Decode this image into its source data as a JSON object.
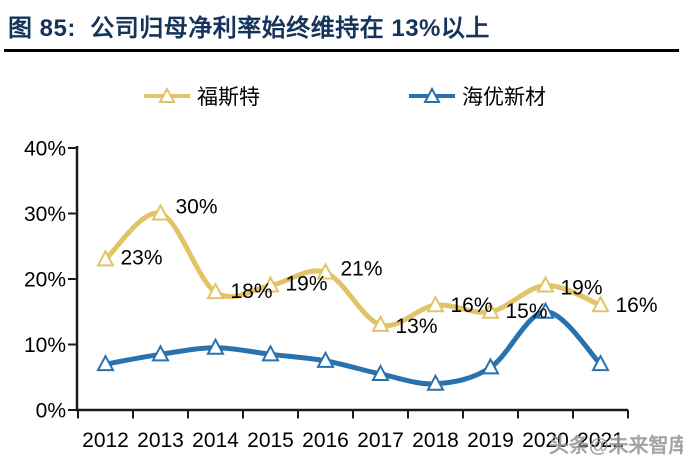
{
  "header": {
    "title": "图 85:  公司归母净利率始终维持在 13%以上"
  },
  "watermark": {
    "text": "头条@未来智库"
  },
  "colors": {
    "title_navy": "#15345C",
    "axis": "#1A1A1A",
    "label_text": "#000000",
    "watermark_gray": "#969696"
  },
  "chart_data": {
    "type": "line",
    "title": "公司归母净利率始终维持在 13%以上",
    "categories": [
      "2012",
      "2013",
      "2014",
      "2015",
      "2016",
      "2017",
      "2018",
      "2019",
      "2020",
      "2021"
    ],
    "series": [
      {
        "name": "福斯特",
        "color": "#E2C368",
        "values": [
          23,
          30,
          18,
          19,
          21,
          13,
          16,
          15,
          19,
          16
        ],
        "point_labels": [
          "23%",
          "30%",
          "18%",
          "19%",
          "21%",
          "13%",
          "16%",
          "15%",
          "19%",
          "16%"
        ]
      },
      {
        "name": "海优新材",
        "color": "#2A72AE",
        "values": [
          7,
          8.5,
          9.5,
          8.5,
          7.5,
          5.5,
          4,
          6.5,
          15,
          7
        ],
        "point_labels": null
      }
    ],
    "ylabel": "",
    "xlabel": "",
    "ylim": [
      0,
      40
    ],
    "ytick_labels": [
      "0%",
      "10%",
      "20%",
      "30%",
      "40%"
    ],
    "grid": false,
    "smooth": true,
    "marker": "open-triangle",
    "legend_position": "top",
    "label_dy": [
      -2,
      -7,
      -1,
      -2,
      -4,
      1,
      0,
      -1,
      2,
      0
    ]
  }
}
